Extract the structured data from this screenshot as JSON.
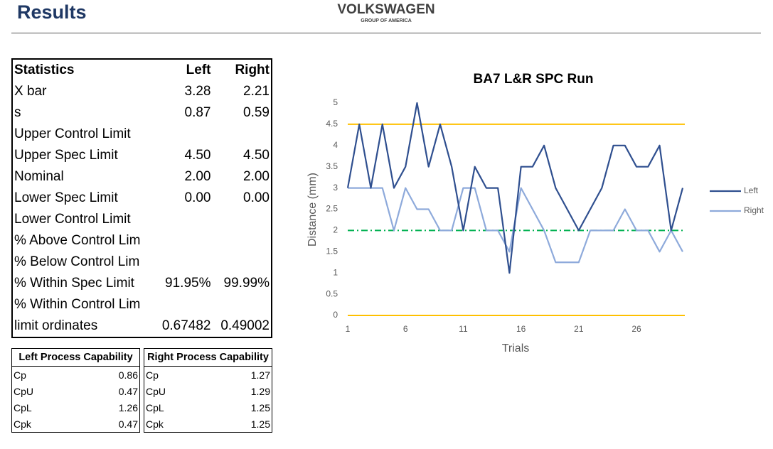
{
  "header": {
    "title": "Results",
    "brand": "VOLKSWAGEN",
    "brand_sub": "GROUP OF AMERICA"
  },
  "statistics": {
    "columns": [
      "Statistics",
      "Left",
      "Right"
    ],
    "rows": [
      [
        "X bar",
        "3.28",
        "2.21"
      ],
      [
        "s",
        "0.87",
        "0.59"
      ],
      [
        "Upper Control Limit"
      ],
      [
        "Upper Spec Limit",
        "4.50",
        "4.50"
      ],
      [
        "Nominal",
        "2.00",
        "2.00"
      ],
      [
        "Lower Spec Limit",
        "0.00",
        "0.00"
      ],
      [
        "Lower Control Limit"
      ],
      [
        "% Above Control Lim"
      ],
      [
        "% Below Control Lim"
      ],
      [
        "% Within Spec Limit",
        "91.95%",
        "99.99%"
      ],
      [
        "% Within Control Lim"
      ],
      [
        "limit ordinates",
        "0.67482",
        "0.49002"
      ]
    ]
  },
  "left_capability": {
    "title": "Left Process Capability",
    "rows": [
      [
        "Cp",
        "0.86"
      ],
      [
        "CpU",
        "0.47"
      ],
      [
        "CpL",
        "1.26"
      ],
      [
        "Cpk",
        "0.47"
      ]
    ]
  },
  "right_capability": {
    "title": "Right Process Capability",
    "rows": [
      [
        "Cp",
        "1.27"
      ],
      [
        "CpU",
        "1.29"
      ],
      [
        "CpL",
        "1.25"
      ],
      [
        "Cpk",
        "1.25"
      ]
    ]
  },
  "chart_data": {
    "type": "line",
    "title": "BA7 L&R SPC Run",
    "x_label": "Trials",
    "y_label": "Distance (mm)",
    "x": [
      1,
      2,
      3,
      4,
      5,
      6,
      7,
      8,
      9,
      10,
      11,
      12,
      13,
      14,
      15,
      16,
      17,
      18,
      19,
      20,
      21,
      22,
      23,
      24,
      25,
      26,
      27,
      28,
      29,
      30
    ],
    "xlim": [
      1,
      30
    ],
    "xticks": [
      1,
      6,
      11,
      16,
      21,
      26
    ],
    "ylim": [
      0,
      5
    ],
    "yticks": [
      0,
      0.5,
      1,
      1.5,
      2,
      2.5,
      3,
      3.5,
      4,
      4.5,
      5
    ],
    "series": [
      {
        "name": "Left",
        "color": "#2f4f8f",
        "values": [
          3,
          4.5,
          3,
          4.5,
          3,
          3.5,
          5,
          3.5,
          4.5,
          3.5,
          2,
          3.5,
          3,
          3,
          1,
          3.5,
          3.5,
          4,
          3,
          2.5,
          2,
          2.5,
          3,
          4,
          4,
          3.5,
          3.5,
          4,
          2,
          3
        ]
      },
      {
        "name": "Right",
        "color": "#8eaadb",
        "values": [
          3,
          3,
          3,
          3,
          2,
          3,
          2.5,
          2.5,
          2,
          2,
          3,
          3,
          2,
          2,
          1.5,
          3,
          2.5,
          2,
          1.25,
          1.25,
          1.25,
          2,
          2,
          2,
          2.5,
          2,
          2,
          1.5,
          2,
          1.5
        ]
      }
    ],
    "reference_lines": [
      {
        "value": 4.5,
        "color": "#ffc000",
        "style": "solid"
      },
      {
        "value": 0,
        "color": "#ffc000",
        "style": "solid"
      },
      {
        "value": 2,
        "color": "#00b050",
        "style": "dashdot"
      }
    ],
    "legend": "right"
  }
}
